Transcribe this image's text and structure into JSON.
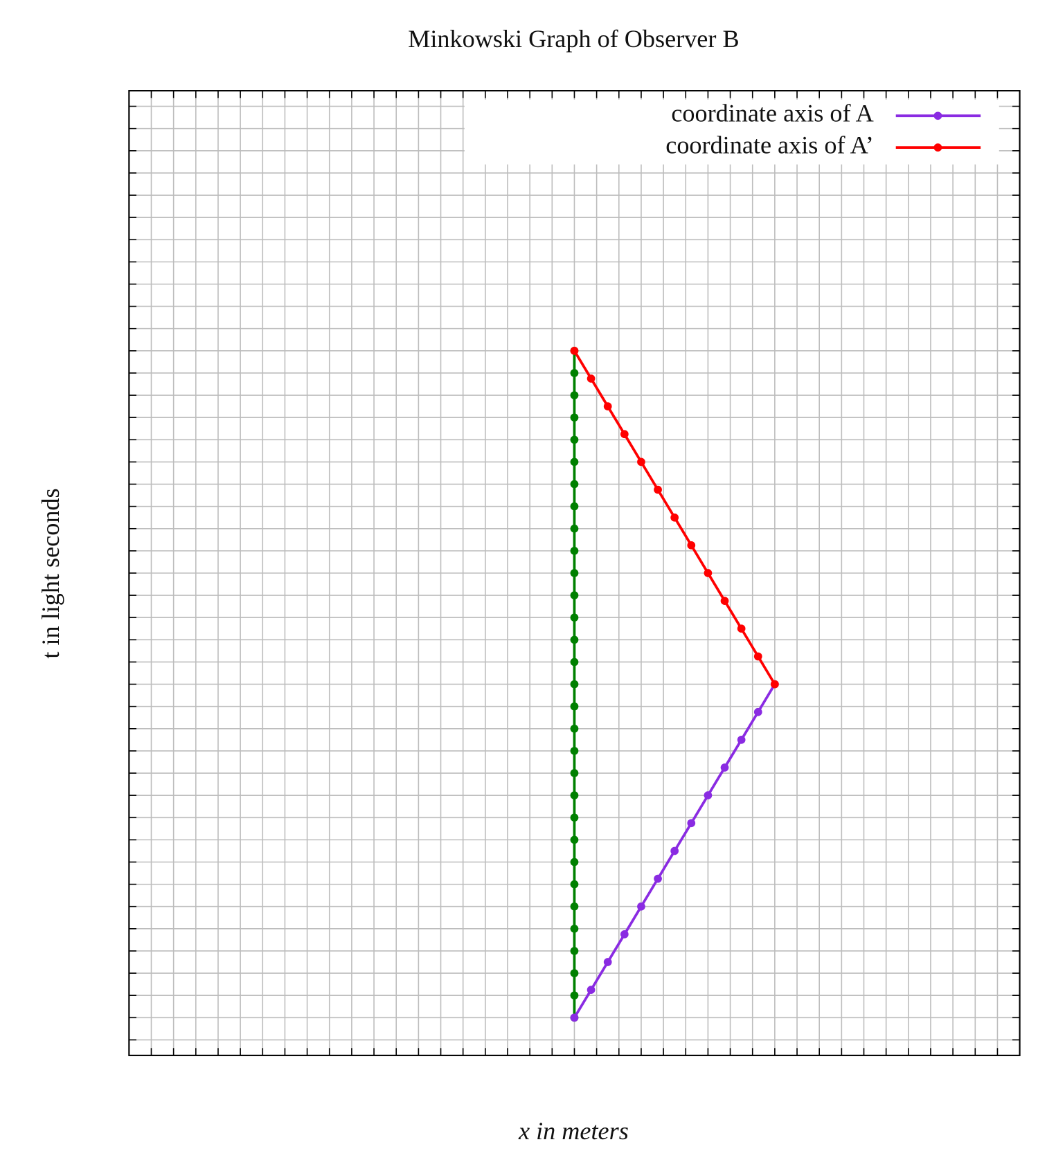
{
  "chart_data": {
    "type": "line",
    "title": "Minkowski Graph of Observer B",
    "xlabel": "x in meters",
    "ylabel": "t in light seconds",
    "xlim": [
      -20,
      20
    ],
    "ylim": [
      -1.7,
      41.7
    ],
    "xticks": [
      -19,
      -18,
      -17,
      -16,
      -15,
      -14,
      -13,
      -12,
      -11,
      -10,
      -9,
      -8,
      -7,
      -6,
      -5,
      -4,
      -3,
      -2,
      -1,
      0,
      1,
      2,
      3,
      4,
      5,
      6,
      7,
      8,
      9,
      10,
      11,
      12,
      13,
      14,
      15,
      16,
      17,
      18,
      19
    ],
    "yticks": [
      -1,
      0,
      1,
      2,
      3,
      4,
      5,
      6,
      7,
      8,
      9,
      10,
      11,
      12,
      13,
      14,
      15,
      16,
      17,
      18,
      19,
      20,
      21,
      22,
      23,
      24,
      25,
      26,
      27,
      28,
      29,
      30,
      31,
      32,
      33,
      34,
      35,
      36,
      37,
      38,
      39,
      40,
      41
    ],
    "grid": true,
    "legend": "upper right",
    "series": [
      {
        "color": "#008000",
        "x": [
          0,
          0,
          0,
          0,
          0,
          0,
          0,
          0,
          0,
          0,
          0,
          0,
          0,
          0,
          0,
          0,
          0,
          0,
          0,
          0,
          0,
          0,
          0,
          0,
          0,
          0,
          0,
          0,
          0,
          0,
          0
        ],
        "values": [
          0,
          1,
          2,
          3,
          4,
          5,
          6,
          7,
          8,
          9,
          10,
          11,
          12,
          13,
          14,
          15,
          16,
          17,
          18,
          19,
          20,
          21,
          22,
          23,
          24,
          25,
          26,
          27,
          28,
          29,
          30
        ]
      },
      {
        "name": "coordinate axis of A",
        "color": "#8a2be2",
        "x": [
          0,
          0.75,
          1.5,
          2.25,
          3,
          3.75,
          4.5,
          5.25,
          6,
          6.75,
          7.5,
          8.25,
          9
        ],
        "values": [
          0,
          1.25,
          2.5,
          3.75,
          5,
          6.25,
          7.5,
          8.75,
          10,
          11.25,
          12.5,
          13.75,
          15
        ]
      },
      {
        "name": "coordinate axis of A’",
        "color": "#ff0000",
        "x": [
          9,
          8.25,
          7.5,
          6.75,
          6,
          5.25,
          4.5,
          3.75,
          3,
          2.25,
          1.5,
          0.75,
          0
        ],
        "values": [
          15,
          16.25,
          17.5,
          18.75,
          20,
          21.25,
          22.5,
          23.75,
          25,
          26.25,
          27.5,
          28.75,
          30
        ]
      }
    ]
  }
}
